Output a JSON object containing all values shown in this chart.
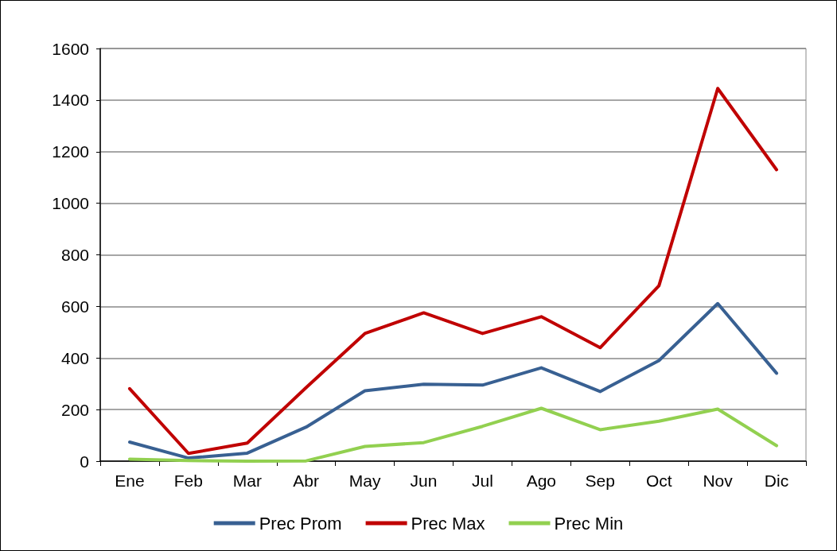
{
  "chart_data": {
    "type": "line",
    "categories": [
      "Ene",
      "Feb",
      "Mar",
      "Abr",
      "May",
      "Jun",
      "Jul",
      "Ago",
      "Sep",
      "Oct",
      "Nov",
      "Dic"
    ],
    "series": [
      {
        "name": "Prec Prom",
        "color": "#386092",
        "values": [
          74,
          12,
          31,
          132,
          273,
          298,
          295,
          362,
          270,
          390,
          611,
          341
        ]
      },
      {
        "name": "Prec Max",
        "color": "#c00000",
        "values": [
          281,
          30,
          70,
          285,
          495,
          575,
          495,
          560,
          440,
          680,
          1445,
          1130
        ]
      },
      {
        "name": "Prec Min",
        "color": "#92d050",
        "values": [
          8,
          2,
          0,
          1,
          57,
          72,
          135,
          205,
          122,
          155,
          202,
          60
        ]
      }
    ],
    "ylim": [
      0,
      1600
    ],
    "yticks": [
      0,
      200,
      400,
      600,
      800,
      1000,
      1200,
      1400,
      1600
    ],
    "grid": "y",
    "legend": "bottom",
    "marker": "none",
    "line_style": "solid"
  }
}
